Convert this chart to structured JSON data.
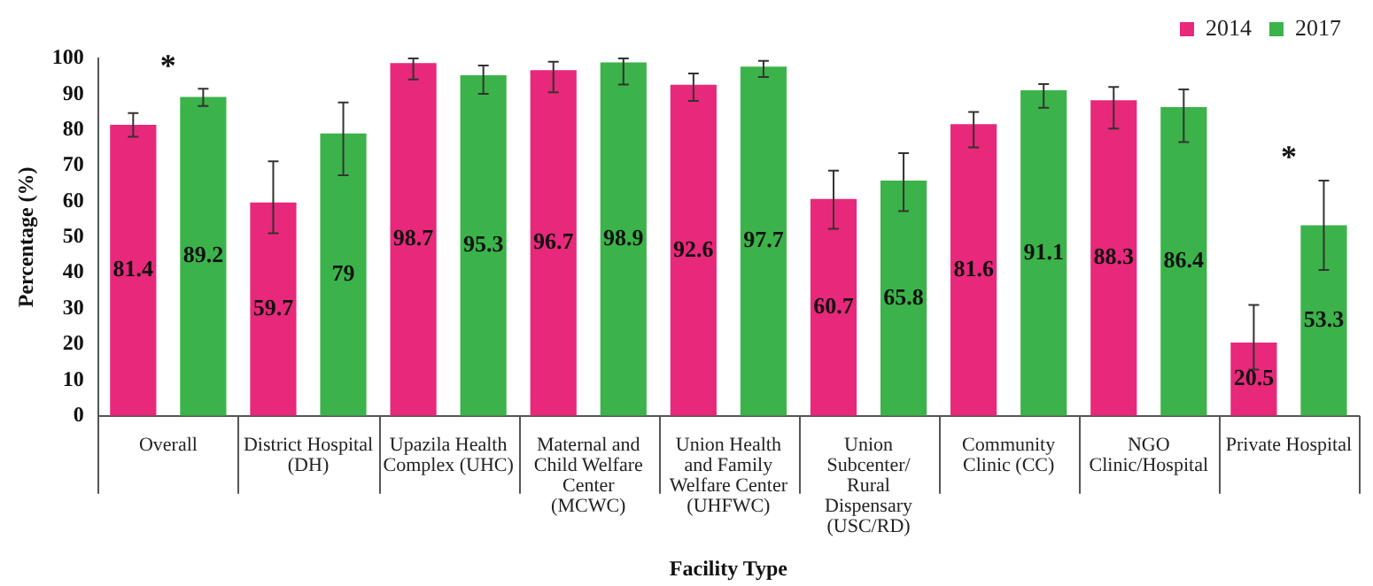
{
  "chart_data": {
    "type": "bar",
    "xlabel": "Facility Type",
    "ylabel": "Percentage (%)",
    "categories": [
      "Overall",
      "District Hospital (DH)",
      "Upazila Health Complex (UHC)",
      "Maternal and Child Welfare Center (MCWC)",
      "Union Health and Family Welfare Center (UHFWC)",
      "Union Subcenter/ Rural Dispensary (USC/RD)",
      "Community Clinic (CC)",
      "NGO Clinic/Hospital",
      "Private Hospital"
    ],
    "series": [
      {
        "name": "2014",
        "color": "#e8287a",
        "values": [
          81.4,
          59.7,
          98.7,
          96.7,
          92.6,
          60.7,
          81.6,
          88.3,
          20.5
        ],
        "errors": [
          [
            78.1,
            84.7
          ],
          [
            51.1,
            71.2
          ],
          [
            94.1,
            100
          ],
          [
            90.5,
            99.1
          ],
          [
            88.1,
            95.8
          ],
          [
            52.3,
            68.6
          ],
          [
            75.1,
            85
          ],
          [
            80.4,
            92
          ],
          [
            12.9,
            31
          ]
        ]
      },
      {
        "name": "2017",
        "color": "#3bb34a",
        "values": [
          89.2,
          79,
          95.3,
          98.9,
          97.7,
          65.8,
          91.1,
          86.4,
          53.3
        ],
        "errors": [
          [
            86.7,
            91.5
          ],
          [
            67.3,
            87.7
          ],
          [
            90.1,
            98
          ],
          [
            92.7,
            100
          ],
          [
            94.8,
            99.3
          ],
          [
            57.3,
            73.5
          ],
          [
            86.2,
            92.8
          ],
          [
            76.6,
            91.3
          ],
          [
            40.8,
            65.8
          ]
        ]
      }
    ],
    "ylim": [
      0,
      100
    ],
    "yticks": [
      0,
      10,
      20,
      30,
      40,
      50,
      60,
      70,
      80,
      90,
      100
    ],
    "data_labels": true,
    "legend": "top right",
    "grid": false,
    "annotations": [
      "*",
      "*"
    ]
  }
}
